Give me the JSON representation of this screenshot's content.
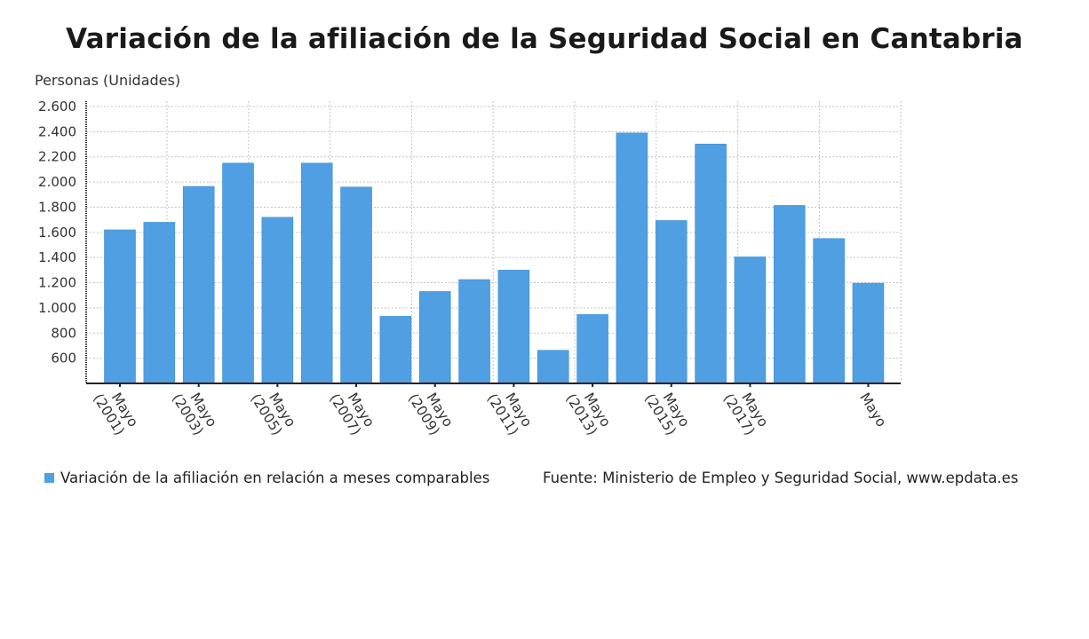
{
  "chart_data": {
    "type": "bar",
    "title": "Variación de la afiliación de la Seguridad Social en Cantabria",
    "ylabel": "Personas (Unidades)",
    "xlabel": "",
    "categories": [
      "Mayo (2001)",
      "Mayo (2002)",
      "Mayo (2003)",
      "Mayo (2004)",
      "Mayo (2005)",
      "Mayo (2006)",
      "Mayo (2007)",
      "Mayo (2008)",
      "Mayo (2009)",
      "Mayo (2010)",
      "Mayo (2011)",
      "Mayo (2012)",
      "Mayo (2013)",
      "Mayo (2014)",
      "Mayo (2015)",
      "Mayo (2016)",
      "Mayo (2017)",
      "Mayo (2018)",
      "Mayo (2019)",
      "Mayo (2020)"
    ],
    "x_tick_labels": [
      {
        "index": 0,
        "line1": "Mayo",
        "line2": "(2001)"
      },
      {
        "index": 2,
        "line1": "Mayo",
        "line2": "(2003)"
      },
      {
        "index": 4,
        "line1": "Mayo",
        "line2": "(2005)"
      },
      {
        "index": 6,
        "line1": "Mayo",
        "line2": "(2007)"
      },
      {
        "index": 8,
        "line1": "Mayo",
        "line2": "(2009)"
      },
      {
        "index": 10,
        "line1": "Mayo",
        "line2": "(2011)"
      },
      {
        "index": 12,
        "line1": "Mayo",
        "line2": "(2013)"
      },
      {
        "index": 14,
        "line1": "Mayo",
        "line2": "(2015)"
      },
      {
        "index": 16,
        "line1": "Mayo",
        "line2": "(2017)"
      },
      {
        "index": 19,
        "line1": "Mayo",
        "line2": ""
      }
    ],
    "series": [
      {
        "name": "Variación de la afiliación en relación a meses comparables",
        "color": "#4f9fe2",
        "values": [
          1620,
          1680,
          1965,
          2150,
          1720,
          2150,
          1960,
          933,
          1130,
          1225,
          1300,
          663,
          947,
          2390,
          1694,
          2302,
          1405,
          1814,
          1551,
          1196
        ]
      }
    ],
    "ylim": [
      400,
      2600
    ],
    "y_ticks": [
      600,
      800,
      1000,
      1200,
      1400,
      1600,
      1800,
      2000,
      2200,
      2400,
      2600
    ],
    "y_tick_labels": [
      "600",
      "800",
      "1.000",
      "1.200",
      "1.400",
      "1.600",
      "1.800",
      "2.000",
      "2.200",
      "2.400",
      "2.600"
    ],
    "grid": true,
    "legend_position": "bottom-left",
    "source": "Fuente: Ministerio de Empleo y Seguridad Social, www.epdata.es"
  }
}
